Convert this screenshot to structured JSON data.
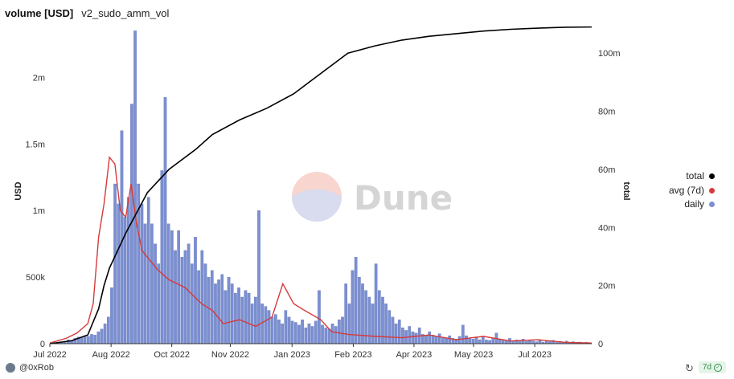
{
  "header": {
    "title": "volume [USD]",
    "subtitle": "v2_sudo_amm_vol"
  },
  "watermark": "Dune",
  "footer": {
    "author": "@0xRob",
    "refresh_badge": "7d"
  },
  "chart_data": {
    "type": "bar",
    "ylabel": "USD",
    "y2label": "total",
    "ylim": [
      0,
      2400000
    ],
    "y2lim": [
      0,
      110000000
    ],
    "yticks": [
      "0",
      "500k",
      "1m",
      "1.5m",
      "2m"
    ],
    "y2ticks": [
      "0",
      "20m",
      "40m",
      "60m",
      "80m",
      "100m"
    ],
    "xticks": [
      "Jul 2022",
      "Aug 2022",
      "Oct 2022",
      "Nov 2022",
      "Jan 2023",
      "Feb 2023",
      "Apr 2023",
      "May 2023",
      "Jul 2023"
    ],
    "colors": {
      "daily": "#7b8fd1",
      "avg": "#d63a3a",
      "total": "#000000"
    },
    "legend_position": "right",
    "series": [
      {
        "name": "total",
        "type": "line",
        "axis": "right",
        "points": [
          [
            0,
            0
          ],
          [
            0.04,
            1000000
          ],
          [
            0.07,
            3000000
          ],
          [
            0.09,
            12000000
          ],
          [
            0.1,
            20000000
          ],
          [
            0.11,
            26000000
          ],
          [
            0.14,
            38000000
          ],
          [
            0.18,
            52000000
          ],
          [
            0.22,
            60000000
          ],
          [
            0.27,
            67000000
          ],
          [
            0.3,
            72000000
          ],
          [
            0.35,
            77000000
          ],
          [
            0.4,
            81000000
          ],
          [
            0.45,
            86000000
          ],
          [
            0.5,
            93000000
          ],
          [
            0.55,
            100000000
          ],
          [
            0.6,
            102500000
          ],
          [
            0.65,
            104500000
          ],
          [
            0.7,
            105800000
          ],
          [
            0.75,
            106700000
          ],
          [
            0.8,
            107600000
          ],
          [
            0.85,
            108200000
          ],
          [
            0.9,
            108600000
          ],
          [
            0.95,
            108900000
          ],
          [
            1.0,
            109000000
          ]
        ]
      },
      {
        "name": "avg (7d)",
        "type": "line",
        "axis": "left",
        "points": [
          [
            0,
            5000
          ],
          [
            0.03,
            40000
          ],
          [
            0.05,
            80000
          ],
          [
            0.07,
            150000
          ],
          [
            0.08,
            300000
          ],
          [
            0.09,
            800000
          ],
          [
            0.1,
            1050000
          ],
          [
            0.11,
            1400000
          ],
          [
            0.12,
            1350000
          ],
          [
            0.13,
            1000000
          ],
          [
            0.14,
            950000
          ],
          [
            0.15,
            1200000
          ],
          [
            0.16,
            900000
          ],
          [
            0.17,
            700000
          ],
          [
            0.18,
            650000
          ],
          [
            0.2,
            550000
          ],
          [
            0.22,
            480000
          ],
          [
            0.25,
            420000
          ],
          [
            0.28,
            300000
          ],
          [
            0.3,
            250000
          ],
          [
            0.32,
            150000
          ],
          [
            0.35,
            180000
          ],
          [
            0.38,
            130000
          ],
          [
            0.41,
            200000
          ],
          [
            0.43,
            450000
          ],
          [
            0.45,
            300000
          ],
          [
            0.47,
            250000
          ],
          [
            0.5,
            180000
          ],
          [
            0.52,
            90000
          ],
          [
            0.55,
            70000
          ],
          [
            0.6,
            55000
          ],
          [
            0.65,
            45000
          ],
          [
            0.7,
            65000
          ],
          [
            0.75,
            30000
          ],
          [
            0.8,
            55000
          ],
          [
            0.85,
            20000
          ],
          [
            0.9,
            30000
          ],
          [
            0.95,
            10000
          ],
          [
            1.0,
            5000
          ]
        ]
      },
      {
        "name": "daily",
        "type": "bar",
        "axis": "left",
        "values": [
          3000,
          5000,
          8000,
          12000,
          20000,
          30000,
          25000,
          40000,
          50000,
          45000,
          60000,
          55000,
          70000,
          65000,
          90000,
          110000,
          150000,
          200000,
          420000,
          1200000,
          1050000,
          1600000,
          950000,
          1100000,
          1800000,
          2350000,
          1200000,
          1050000,
          900000,
          1100000,
          900000,
          750000,
          600000,
          1300000,
          1850000,
          900000,
          850000,
          700000,
          850000,
          650000,
          700000,
          750000,
          600000,
          800000,
          550000,
          700000,
          600000,
          500000,
          550000,
          450000,
          480000,
          520000,
          400000,
          500000,
          450000,
          380000,
          420000,
          350000,
          400000,
          380000,
          300000,
          350000,
          1000000,
          300000,
          280000,
          250000,
          200000,
          220000,
          180000,
          150000,
          250000,
          200000,
          170000,
          160000,
          140000,
          180000,
          120000,
          150000,
          130000,
          170000,
          400000,
          140000,
          120000,
          110000,
          150000,
          130000,
          180000,
          200000,
          450000,
          300000,
          550000,
          650000,
          500000,
          450000,
          400000,
          350000,
          300000,
          600000,
          400000,
          350000,
          300000,
          250000,
          200000,
          150000,
          180000,
          120000,
          100000,
          130000,
          90000,
          80000,
          120000,
          70000,
          60000,
          90000,
          65000,
          55000,
          75000,
          50000,
          45000,
          60000,
          40000,
          35000,
          55000,
          140000,
          60000,
          40000,
          35000,
          45000,
          30000,
          50000,
          28000,
          25000,
          40000,
          80000,
          35000,
          30000,
          25000,
          40000,
          20000,
          28000,
          22000,
          35000,
          18000,
          25000,
          20000,
          15000,
          30000,
          12000,
          20000,
          15000,
          25000,
          10000,
          18000,
          12000,
          20000,
          8000,
          15000,
          10000,
          12000,
          6000,
          10000,
          8000
        ]
      }
    ]
  }
}
